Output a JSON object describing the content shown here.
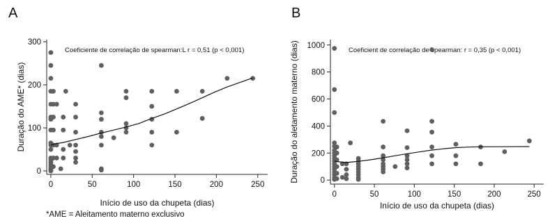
{
  "footnote": "*AME = Aleitamento materno exclusivo",
  "chart_data": [
    {
      "panel": "A",
      "type": "scatter",
      "xlabel": "Início de uso da chupeta (dias)",
      "ylabel": "Duração do AME* (dias)",
      "annotation": "Coeficiente de correlação de spearman:L r = 0,51 (p < 0,001)",
      "xlim": [
        -5,
        262
      ],
      "ylim": [
        -8,
        305
      ],
      "xticks": [
        0,
        50,
        100,
        150,
        200,
        250
      ],
      "yticks": [
        0,
        100,
        200,
        300
      ],
      "points": [
        [
          0,
          275
        ],
        [
          0,
          245
        ],
        [
          0,
          215
        ],
        [
          0,
          185
        ],
        [
          0,
          155
        ],
        [
          0,
          125
        ],
        [
          0,
          120
        ],
        [
          0,
          95
        ],
        [
          0,
          65
        ],
        [
          0,
          60
        ],
        [
          0,
          50
        ],
        [
          0,
          30
        ],
        [
          0,
          25
        ],
        [
          0,
          20
        ],
        [
          0,
          15
        ],
        [
          0,
          10
        ],
        [
          0,
          5
        ],
        [
          0,
          2
        ],
        [
          0,
          0
        ],
        [
          3,
          185
        ],
        [
          3,
          155
        ],
        [
          3,
          125
        ],
        [
          3,
          95
        ],
        [
          3,
          60
        ],
        [
          3,
          30
        ],
        [
          3,
          10
        ],
        [
          7,
          155
        ],
        [
          7,
          60
        ],
        [
          7,
          30
        ],
        [
          12,
          5
        ],
        [
          15,
          125
        ],
        [
          15,
          95
        ],
        [
          15,
          50
        ],
        [
          15,
          30
        ],
        [
          18,
          185
        ],
        [
          23,
          60
        ],
        [
          30,
          155
        ],
        [
          30,
          125
        ],
        [
          30,
          90
        ],
        [
          30,
          60
        ],
        [
          30,
          45
        ],
        [
          30,
          30
        ],
        [
          30,
          20
        ],
        [
          61,
          245
        ],
        [
          61,
          135
        ],
        [
          61,
          120
        ],
        [
          61,
          90
        ],
        [
          61,
          80
        ],
        [
          61,
          60
        ],
        [
          61,
          5
        ],
        [
          61,
          2
        ],
        [
          76,
          77
        ],
        [
          91,
          185
        ],
        [
          91,
          170
        ],
        [
          91,
          110
        ],
        [
          91,
          100
        ],
        [
          91,
          90
        ],
        [
          122,
          185
        ],
        [
          122,
          150
        ],
        [
          122,
          120
        ],
        [
          122,
          90
        ],
        [
          122,
          60
        ],
        [
          152,
          185
        ],
        [
          152,
          90
        ],
        [
          183,
          185
        ],
        [
          183,
          122
        ],
        [
          213,
          215
        ],
        [
          244,
          215
        ]
      ],
      "smooth_line": [
        [
          0,
          60
        ],
        [
          5,
          63
        ],
        [
          15,
          66
        ],
        [
          30,
          73
        ],
        [
          45,
          80
        ],
        [
          61,
          88
        ],
        [
          76,
          95
        ],
        [
          91,
          102
        ],
        [
          106,
          110
        ],
        [
          122,
          122
        ],
        [
          137,
          132
        ],
        [
          152,
          144
        ],
        [
          168,
          157
        ],
        [
          183,
          170
        ],
        [
          198,
          183
        ],
        [
          213,
          195
        ],
        [
          229,
          206
        ],
        [
          244,
          216
        ]
      ]
    },
    {
      "panel": "B",
      "type": "scatter",
      "xlabel": "Início de uso da chupeta (dias)",
      "ylabel": "Duração do aletamento materno (dias)",
      "annotation": "Coeficient de correlação de spearman: r = 0,35 (p < 0,001)",
      "xlim": [
        -5,
        262
      ],
      "ylim": [
        -30,
        1040
      ],
      "xticks": [
        0,
        50,
        100,
        150,
        200,
        250
      ],
      "yticks": [
        0,
        200,
        400,
        600,
        800,
        1000
      ],
      "points": [
        [
          0,
          975
        ],
        [
          0,
          670
        ],
        [
          0,
          500
        ],
        [
          0,
          275
        ],
        [
          0,
          250
        ],
        [
          0,
          220
        ],
        [
          0,
          200
        ],
        [
          0,
          180
        ],
        [
          0,
          160
        ],
        [
          0,
          140
        ],
        [
          0,
          120
        ],
        [
          0,
          100
        ],
        [
          0,
          80
        ],
        [
          0,
          60
        ],
        [
          0,
          40
        ],
        [
          0,
          20
        ],
        [
          0,
          5
        ],
        [
          3,
          245
        ],
        [
          3,
          200
        ],
        [
          3,
          150
        ],
        [
          3,
          100
        ],
        [
          3,
          50
        ],
        [
          3,
          10
        ],
        [
          10,
          120
        ],
        [
          10,
          20
        ],
        [
          15,
          120
        ],
        [
          15,
          80
        ],
        [
          15,
          40
        ],
        [
          15,
          10
        ],
        [
          20,
          275
        ],
        [
          30,
          160
        ],
        [
          30,
          140
        ],
        [
          30,
          120
        ],
        [
          30,
          100
        ],
        [
          30,
          80
        ],
        [
          30,
          60
        ],
        [
          30,
          40
        ],
        [
          30,
          20
        ],
        [
          30,
          5
        ],
        [
          61,
          435
        ],
        [
          61,
          245
        ],
        [
          61,
          180
        ],
        [
          61,
          150
        ],
        [
          61,
          120
        ],
        [
          61,
          100
        ],
        [
          61,
          80
        ],
        [
          61,
          60
        ],
        [
          76,
          100
        ],
        [
          91,
          365
        ],
        [
          91,
          240
        ],
        [
          91,
          180
        ],
        [
          91,
          150
        ],
        [
          91,
          120
        ],
        [
          91,
          90
        ],
        [
          122,
          965
        ],
        [
          122,
          435
        ],
        [
          122,
          355
        ],
        [
          122,
          245
        ],
        [
          122,
          180
        ],
        [
          122,
          120
        ],
        [
          152,
          265
        ],
        [
          152,
          180
        ],
        [
          152,
          120
        ],
        [
          183,
          245
        ],
        [
          183,
          120
        ],
        [
          213,
          210
        ],
        [
          244,
          290
        ]
      ],
      "smooth_line": [
        [
          0,
          140
        ],
        [
          5,
          135
        ],
        [
          15,
          130
        ],
        [
          30,
          138
        ],
        [
          45,
          150
        ],
        [
          61,
          165
        ],
        [
          76,
          180
        ],
        [
          91,
          195
        ],
        [
          106,
          208
        ],
        [
          122,
          222
        ],
        [
          137,
          232
        ],
        [
          152,
          240
        ],
        [
          168,
          244
        ],
        [
          183,
          246
        ],
        [
          213,
          247
        ],
        [
          244,
          248
        ]
      ]
    }
  ]
}
